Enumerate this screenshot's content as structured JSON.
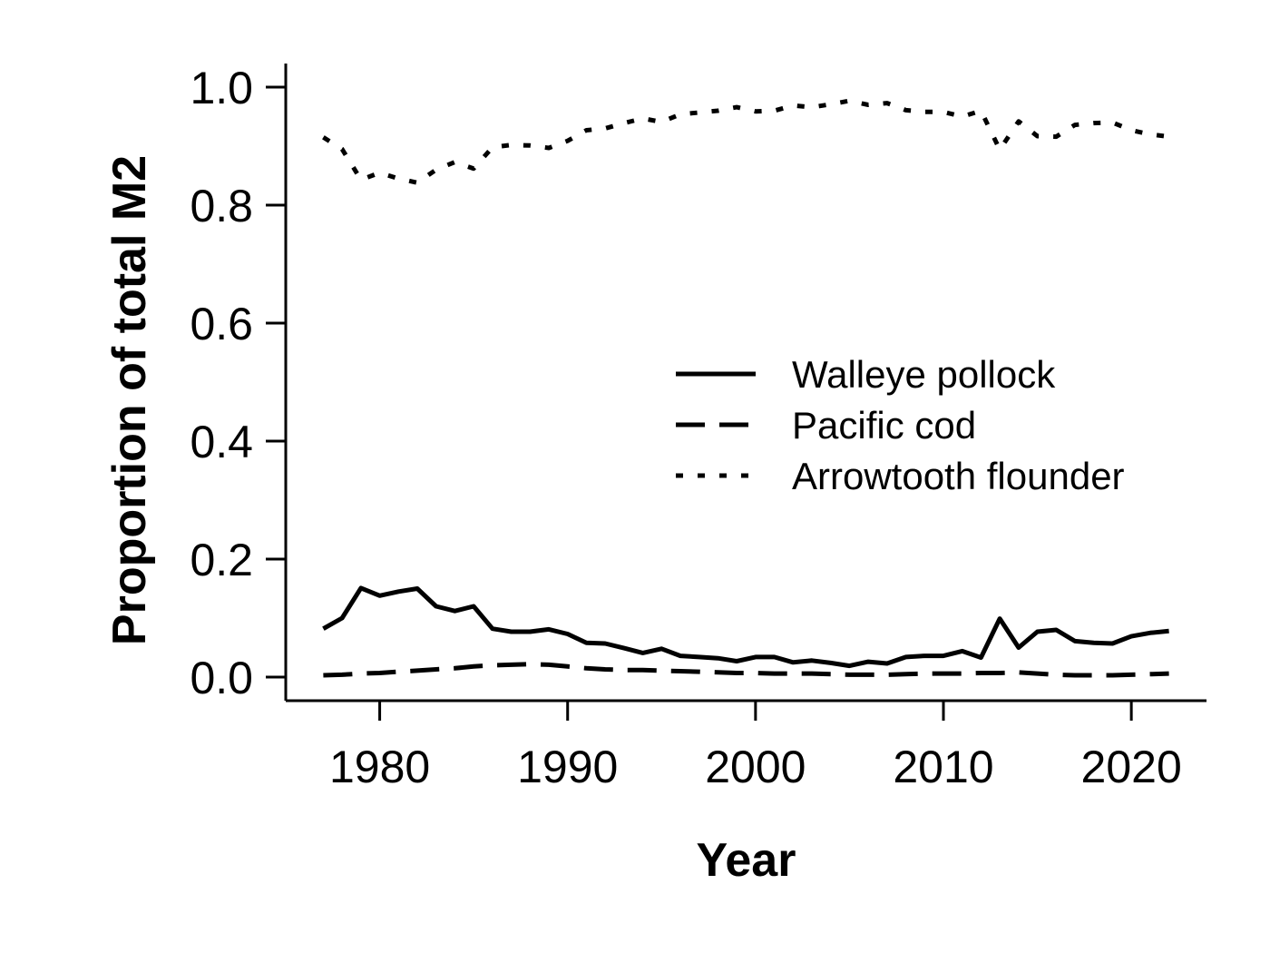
{
  "chart_data": {
    "type": "line",
    "title": "",
    "xlabel": "Year",
    "ylabel": "Proportion of total M2",
    "xlim": [
      1975,
      2024
    ],
    "ylim": [
      -0.04,
      1.04
    ],
    "x_ticks": [
      1980,
      1990,
      2000,
      2010,
      2020
    ],
    "y_ticks": [
      0.0,
      0.2,
      0.4,
      0.6,
      0.8,
      1.0
    ],
    "x_tick_labels": [
      "1980",
      "1990",
      "2000",
      "2010",
      "2020"
    ],
    "y_tick_labels": [
      "0.0",
      "0.2",
      "0.4",
      "0.6",
      "0.8",
      "1.0"
    ],
    "grid": false,
    "legend_position": "right-center",
    "x": [
      1977,
      1978,
      1979,
      1980,
      1981,
      1982,
      1983,
      1984,
      1985,
      1986,
      1987,
      1988,
      1989,
      1990,
      1991,
      1992,
      1993,
      1994,
      1995,
      1996,
      1997,
      1998,
      1999,
      2000,
      2001,
      2002,
      2003,
      2004,
      2005,
      2006,
      2007,
      2008,
      2009,
      2010,
      2011,
      2012,
      2013,
      2014,
      2015,
      2016,
      2017,
      2018,
      2019,
      2020,
      2021,
      2022
    ],
    "series": [
      {
        "name": "Walleye pollock",
        "dash": "solid",
        "values": [
          0.082,
          0.1,
          0.151,
          0.138,
          0.145,
          0.15,
          0.12,
          0.112,
          0.12,
          0.082,
          0.077,
          0.077,
          0.081,
          0.073,
          0.058,
          0.057,
          0.049,
          0.041,
          0.048,
          0.036,
          0.034,
          0.032,
          0.027,
          0.034,
          0.034,
          0.025,
          0.028,
          0.024,
          0.019,
          0.026,
          0.023,
          0.034,
          0.036,
          0.036,
          0.044,
          0.033,
          0.099,
          0.05,
          0.077,
          0.08,
          0.061,
          0.058,
          0.057,
          0.069,
          0.075,
          0.078
        ]
      },
      {
        "name": "Pacific cod",
        "dash": "dashed",
        "values": [
          0.003,
          0.004,
          0.006,
          0.007,
          0.009,
          0.011,
          0.013,
          0.015,
          0.018,
          0.02,
          0.021,
          0.022,
          0.021,
          0.018,
          0.015,
          0.013,
          0.012,
          0.012,
          0.011,
          0.01,
          0.009,
          0.008,
          0.007,
          0.007,
          0.006,
          0.006,
          0.006,
          0.005,
          0.004,
          0.004,
          0.004,
          0.005,
          0.006,
          0.006,
          0.006,
          0.007,
          0.007,
          0.008,
          0.006,
          0.004,
          0.003,
          0.003,
          0.003,
          0.004,
          0.005,
          0.006
        ]
      },
      {
        "name": "Arrowtooth flounder",
        "dash": "dotted",
        "values": [
          0.915,
          0.895,
          0.843,
          0.855,
          0.845,
          0.838,
          0.86,
          0.873,
          0.862,
          0.898,
          0.902,
          0.901,
          0.897,
          0.909,
          0.927,
          0.93,
          0.939,
          0.947,
          0.941,
          0.954,
          0.957,
          0.96,
          0.966,
          0.959,
          0.96,
          0.969,
          0.966,
          0.971,
          0.977,
          0.97,
          0.973,
          0.961,
          0.958,
          0.958,
          0.95,
          0.96,
          0.894,
          0.942,
          0.917,
          0.916,
          0.936,
          0.939,
          0.94,
          0.927,
          0.92,
          0.916
        ]
      }
    ]
  }
}
